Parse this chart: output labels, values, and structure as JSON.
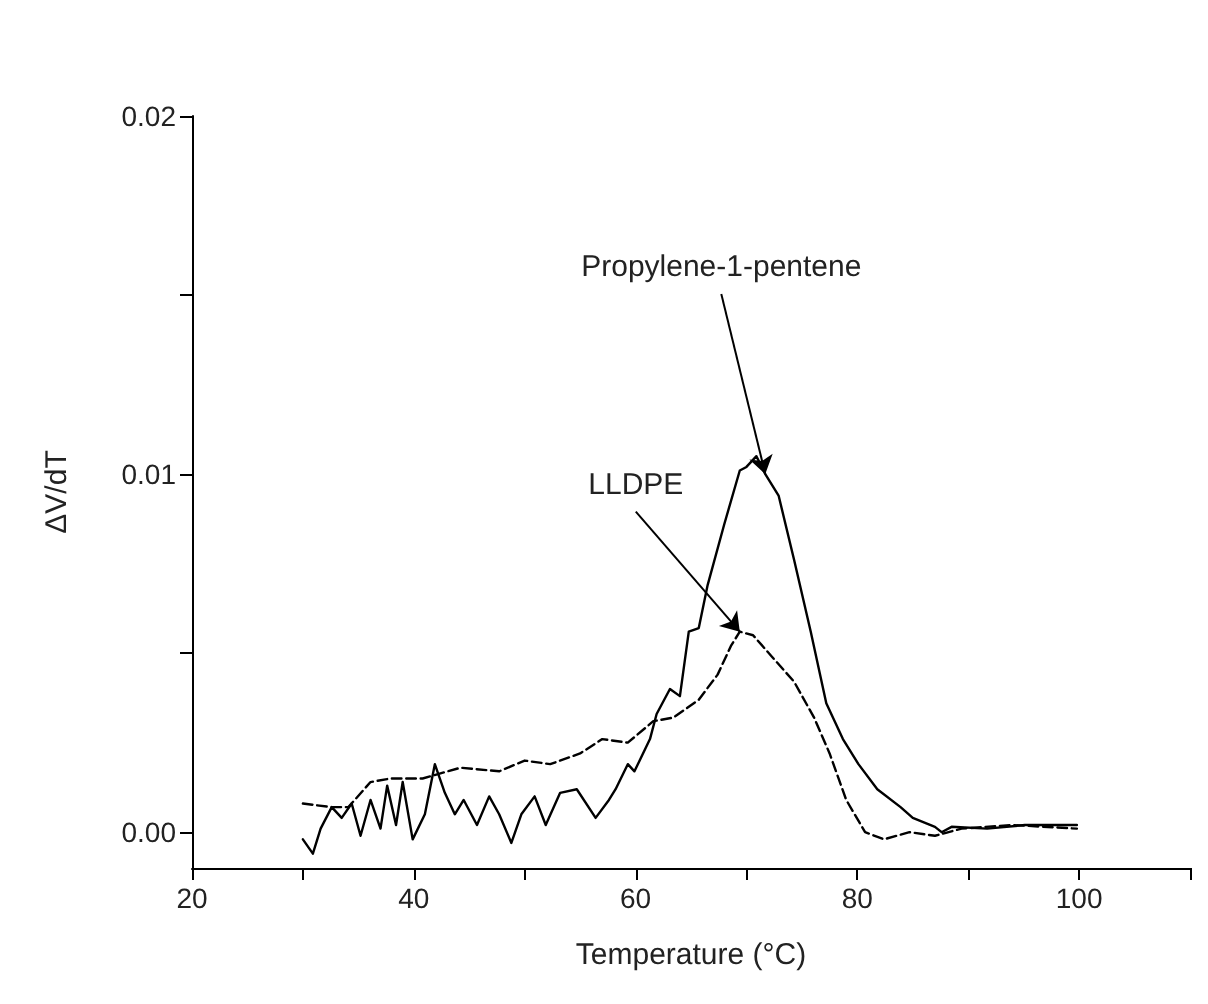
{
  "chart_data": {
    "type": "line",
    "xlabel": "Temperature (°C)",
    "ylabel": "ΔV/dT",
    "xlim": [
      20,
      110
    ],
    "ylim": [
      -0.001,
      0.02
    ],
    "xticks": [
      20,
      {
        "value": 30,
        "label": null
      },
      40,
      {
        "value": 50,
        "label": null
      },
      60,
      {
        "value": 70,
        "label": null
      },
      80,
      {
        "value": 90,
        "label": null
      },
      100,
      {
        "value": 110,
        "label": null
      }
    ],
    "yticks": [
      {
        "value": 0,
        "label": "0.00"
      },
      {
        "value": 0.005,
        "label": null
      },
      {
        "value": 0.01,
        "label": "0.01"
      },
      {
        "value": 0.015,
        "label": null
      },
      {
        "value": 0.02,
        "label": "0.02"
      }
    ],
    "grid": false,
    "marker": "none",
    "series": [
      {
        "color": "#000000",
        "line_style": "solid",
        "x": [
          30,
          30.9,
          31.6,
          32.6,
          33.5,
          34.4,
          35.2,
          36.1,
          37,
          37.6,
          38.4,
          39,
          39.9,
          41,
          41.9,
          42.8,
          43.7,
          44.5,
          45.7,
          46.8,
          47.7,
          48.8,
          49.7,
          50.9,
          51.9,
          53.2,
          54.7,
          56.4,
          57.6,
          58.2,
          59.3,
          59.9,
          61.3,
          61.9,
          63.1,
          64,
          64.8,
          65.7,
          66.5,
          68,
          69.4,
          70,
          70.9,
          71.7,
          72.9,
          74.3,
          75.8,
          77.2,
          78.7,
          80.1,
          81.8,
          83.9,
          85,
          87,
          87.6,
          88.5,
          91.7,
          95.1,
          99.8
        ],
        "values": [
          -0.0002,
          -0.0006,
          0.0001,
          0.0007,
          0.0004,
          0.0008,
          -0.0001,
          0.0009,
          0.0001,
          0.0013,
          0.0002,
          0.0014,
          -0.0002,
          0.0005,
          0.0019,
          0.0011,
          0.0005,
          0.0009,
          0.0002,
          0.001,
          0.0005,
          -0.0003,
          0.0005,
          0.001,
          0.0002,
          0.0011,
          0.0012,
          0.0004,
          0.0009,
          0.0012,
          0.0019,
          0.0017,
          0.0026,
          0.0033,
          0.004,
          0.0038,
          0.0056,
          0.0057,
          0.0069,
          0.0086,
          0.0101,
          0.0102,
          0.0105,
          0.01,
          0.0094,
          0.0076,
          0.0056,
          0.0036,
          0.0026,
          0.0019,
          0.0012,
          0.0007,
          0.0004,
          0.00015,
          0,
          0.00015,
          0.0001,
          0.0002,
          0.0002
        ]
      },
      {
        "color": "#000000",
        "line_style": "dashed",
        "x": [
          30,
          32.6,
          34.1,
          36.1,
          37.9,
          40.8,
          44.2,
          47.7,
          50,
          52.3,
          55,
          57,
          59.3,
          61.6,
          63.4,
          65.7,
          67.4,
          68.6,
          69.4,
          70.6,
          72.3,
          74.3,
          76.1,
          77.5,
          79,
          80.7,
          82.4,
          84.7,
          87,
          89.4,
          94,
          99.8
        ],
        "values": [
          0.0008,
          0.0007,
          0.0007,
          0.0014,
          0.0015,
          0.0015,
          0.0018,
          0.0017,
          0.002,
          0.0019,
          0.0022,
          0.0026,
          0.0025,
          0.0031,
          0.0032,
          0.0037,
          0.0044,
          0.0052,
          0.0056,
          0.0055,
          0.0049,
          0.0042,
          0.0032,
          0.0022,
          0.0009,
          0,
          -0.0002,
          0,
          -0.0001,
          0.0001,
          0.0002,
          0.0001
        ]
      }
    ],
    "annotations": [
      {
        "text": "Propylene-1-pentene",
        "x": 71.7,
        "y": 0.01
      },
      {
        "text": "LLDPE",
        "x": 69.4,
        "y": 0.0056
      }
    ]
  }
}
